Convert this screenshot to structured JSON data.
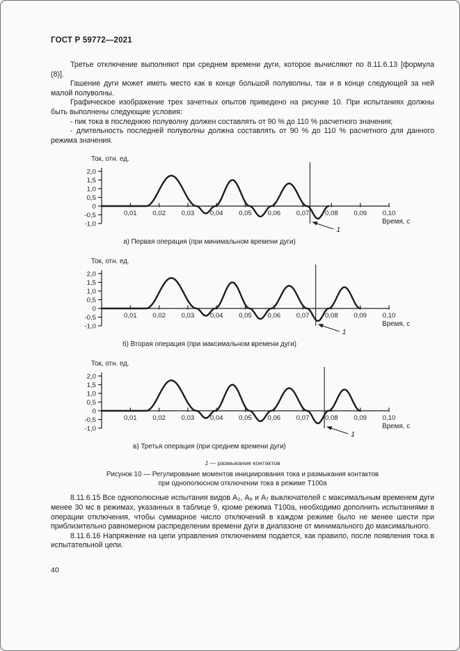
{
  "page": {
    "header": "ГОСТ Р 59772—2021",
    "number": "40"
  },
  "paragraphs_top": [
    "Третье отключение выполняют при среднем времени дуги, которое вычисляют по 8.11.6.13 [фор­мула (8)].",
    "Гашение дуги может иметь место как в конце большой полуволны, так и в конце следующей за ней малой полуволны.",
    "Графическое изображение трех зачетных опытов приведено на рисунке 10. При испытаниях долж­ны быть выполнены следующие условия:",
    "- пик тока в последнюю полуволну должен составлять от 90 % до 110 % расчетного значения;",
    "- длительность последней полуволны должна составлять от 90 % до 110 % расчетного для данно­го режима значения."
  ],
  "figure": {
    "legend_marker": "1",
    "legend_text": "— размыкание контактов",
    "caption_line1": "Рисунок 10 — Регулирование моментов инициирования тока и размыкания контактов",
    "caption_line2": "при однополюсном отключении тока в режиме Т100а"
  },
  "chart_data": [
    {
      "type": "line",
      "caption": "а) Первая операция (при минимальном времени дуги)",
      "ylabel": "Ток, отн. ед.",
      "xlabel": "Время, с",
      "ylim": [
        -1.0,
        2.0
      ],
      "xlim": [
        0,
        0.1
      ],
      "ytick_values": [
        2.0,
        1.5,
        1.0,
        0.5,
        0,
        -0.5,
        -1.0
      ],
      "ytick_labels": [
        "2,0",
        "1,5",
        "1,0",
        "0,5",
        "0",
        "-0,5",
        "-1,0"
      ],
      "xtick_values": [
        0.01,
        0.02,
        0.03,
        0.04,
        0.05,
        0.06,
        0.07,
        0.08,
        0.09,
        0.1
      ],
      "xtick_labels": [
        "0,01",
        "0,02",
        "0,03",
        "0,04",
        "0,05",
        "0,06",
        "0,07",
        "0,08",
        "0,09",
        "0,10"
      ],
      "flat_until": 0.0155,
      "half_waves": [
        {
          "t0": 0.0155,
          "t1": 0.033,
          "amp": 1.75
        },
        {
          "t0": 0.033,
          "t1": 0.0395,
          "amp": -0.42
        },
        {
          "t0": 0.0395,
          "t1": 0.0515,
          "amp": 1.5
        },
        {
          "t0": 0.0515,
          "t1": 0.059,
          "amp": -0.6
        },
        {
          "t0": 0.059,
          "t1": 0.0715,
          "amp": 1.3
        },
        {
          "t0": 0.0715,
          "t1": 0.079,
          "amp": -0.72
        }
      ],
      "contact_marker_t": 0.0725,
      "marker_label": "1"
    },
    {
      "type": "line",
      "caption": "б) Вторая операция (при максимальном времени дуги)",
      "ylabel": "Ток, отн. ед.",
      "xlabel": "Время, с",
      "ylim": [
        -1.0,
        2.0
      ],
      "xlim": [
        0,
        0.1
      ],
      "ytick_values": [
        2.0,
        1.5,
        1.0,
        0.5,
        0,
        -0.5,
        -1.0
      ],
      "ytick_labels": [
        "2,0",
        "1,5",
        "1,0",
        "0,5",
        "0",
        "-0,5",
        "-1,0"
      ],
      "xtick_values": [
        0.01,
        0.02,
        0.03,
        0.04,
        0.05,
        0.06,
        0.07,
        0.08,
        0.09,
        0.1
      ],
      "xtick_labels": [
        "0,01",
        "0,02",
        "0,03",
        "0,04",
        "0,05",
        "0,06",
        "0,07",
        "0,08",
        "0,09",
        "0,10"
      ],
      "flat_until": 0.0155,
      "half_waves": [
        {
          "t0": 0.0155,
          "t1": 0.033,
          "amp": 1.75
        },
        {
          "t0": 0.033,
          "t1": 0.0395,
          "amp": -0.42
        },
        {
          "t0": 0.0395,
          "t1": 0.0515,
          "amp": 1.5
        },
        {
          "t0": 0.0515,
          "t1": 0.059,
          "amp": -0.6
        },
        {
          "t0": 0.059,
          "t1": 0.0715,
          "amp": 1.3
        },
        {
          "t0": 0.0715,
          "t1": 0.079,
          "amp": -0.72
        },
        {
          "t0": 0.079,
          "t1": 0.09,
          "amp": 1.22
        }
      ],
      "contact_marker_t": 0.0745,
      "marker_label": "1"
    },
    {
      "type": "line",
      "caption": "в) Третья операция (при среднем времени дуги)",
      "ylabel": "Ток, отн. ед.",
      "xlabel": "Время, с",
      "ylim": [
        -1.0,
        2.0
      ],
      "xlim": [
        0,
        0.1
      ],
      "ytick_values": [
        2.0,
        1.5,
        1.0,
        0.5,
        0,
        -0.5,
        -1.0
      ],
      "ytick_labels": [
        "2,0",
        "1,5",
        "1,0",
        "0,5",
        "0",
        "-0,5",
        "-1,0"
      ],
      "xtick_values": [
        0.01,
        0.02,
        0.03,
        0.04,
        0.05,
        0.06,
        0.07,
        0.08,
        0.09,
        0.1
      ],
      "xtick_labels": [
        "0,01",
        "0,02",
        "0,03",
        "0,04",
        "0,05",
        "0,06",
        "0,07",
        "0,08",
        "0,09",
        "0,10"
      ],
      "flat_until": 0.0155,
      "half_waves": [
        {
          "t0": 0.0155,
          "t1": 0.033,
          "amp": 1.75
        },
        {
          "t0": 0.033,
          "t1": 0.0395,
          "amp": -0.42
        },
        {
          "t0": 0.0395,
          "t1": 0.0515,
          "amp": 1.5
        },
        {
          "t0": 0.0515,
          "t1": 0.059,
          "amp": -0.6
        },
        {
          "t0": 0.059,
          "t1": 0.0715,
          "amp": 1.3
        },
        {
          "t0": 0.0715,
          "t1": 0.079,
          "amp": -0.72
        },
        {
          "t0": 0.079,
          "t1": 0.09,
          "amp": 1.22
        }
      ],
      "contact_marker_t": 0.0775,
      "marker_label": "1"
    }
  ],
  "paragraphs_bottom": [
    "8.11.6.15 Все однополюсные испытания видов А₂, А₈ и А₇ выключателей с максимальным време­нем дуги менее 30 мс в режимах, указанных в таблице 9, кроме режима Т100а, необходимо дополнить испытаниями в операции отключения, чтобы суммарное число отключений в каждом режиме было не менее шести при приблизительно равномерном распределении времени дуги в диапазоне от мини­мального до максимального.",
    "8.11.6.16 Напряжение на цепи управления отключением подается, как правило, после появления тока в испытательной цепи."
  ]
}
